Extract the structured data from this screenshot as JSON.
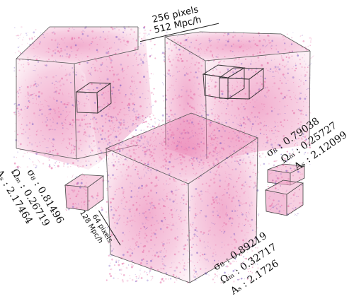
{
  "large_cube_size": {
    "pixels": "256 pixels",
    "mpc": "512 Mpc/h"
  },
  "small_cube_size": {
    "pixels": "64 pixels",
    "mpc": "128 Mpc/h"
  },
  "cubes": [
    {
      "sigma8": "σ₈ : 0.81496",
      "omega_m": "Ωₘ : 0.26719",
      "a_s": "Aₛ : 2.17464"
    },
    {
      "sigma8": "σ₈ : 0.79038",
      "omega_m": "Ωₘ : 0.25727",
      "a_s": "Aₛ : 2.12099"
    },
    {
      "sigma8": "σ₈ : 0.89219",
      "omega_m": "Ωₘ : 0.32717",
      "a_s": "Aₛ : 2.1726"
    }
  ],
  "colors": {
    "density_pink": "#e46aa4",
    "density_violet": "#7c5cc4",
    "frame": "#555555"
  }
}
